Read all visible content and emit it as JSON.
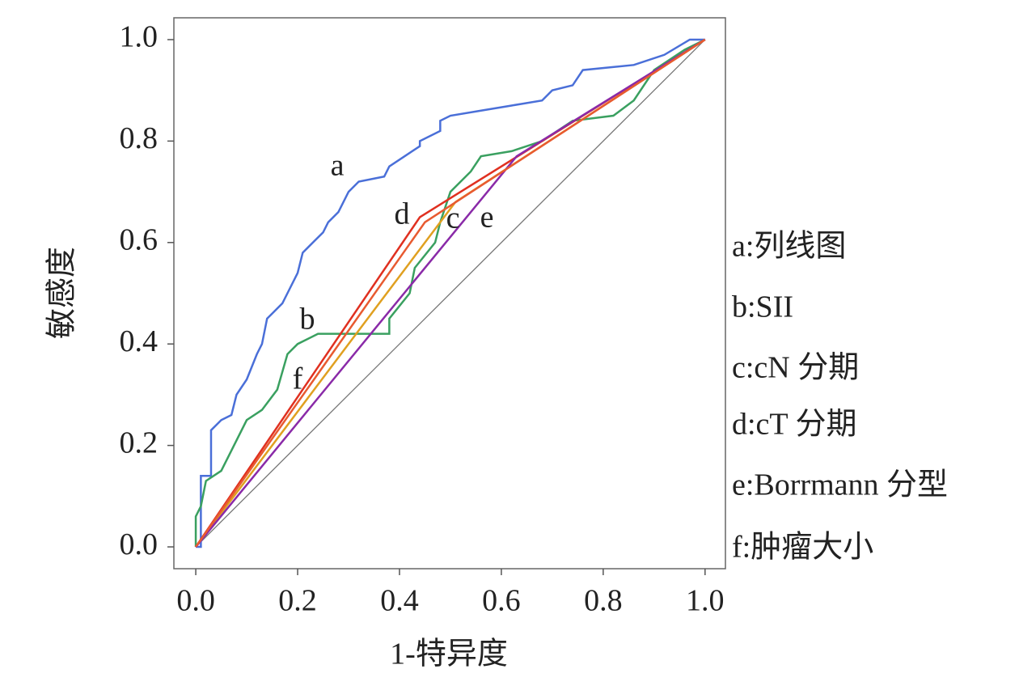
{
  "chart_data": {
    "type": "line",
    "x_label": "1-特异度",
    "y_label": "敏感度",
    "xlim": [
      -0.043,
      1.04
    ],
    "ylim": [
      -0.043,
      1.043
    ],
    "xticks": [
      {
        "value": 0,
        "label": "0.0"
      },
      0.2,
      0.4,
      0.6,
      0.8,
      {
        "value": 1,
        "label": "1.0"
      }
    ],
    "yticks": [
      {
        "value": 0,
        "label": "0.0"
      },
      0.2,
      0.4,
      0.6,
      0.8,
      {
        "value": 1,
        "label": "1.0"
      }
    ],
    "annotations": [
      "a",
      "b",
      "c",
      "d",
      "e",
      "f"
    ],
    "series": [
      {
        "name": "a:列线图",
        "color": "#4a6fd8",
        "x": [
          0,
          0.01,
          0.01,
          0.03,
          0.03,
          0.05,
          0.07,
          0.08,
          0.1,
          0.12,
          0.13,
          0.14,
          0.15,
          0.17,
          0.18,
          0.2,
          0.21,
          0.23,
          0.25,
          0.26,
          0.28,
          0.3,
          0.32,
          0.37,
          0.38,
          0.41,
          0.44,
          0.44,
          0.48,
          0.48,
          0.5,
          0.56,
          0.62,
          0.68,
          0.7,
          0.74,
          0.76,
          0.86,
          0.92,
          0.97,
          1
        ],
        "values": [
          0,
          0,
          0.14,
          0.14,
          0.23,
          0.25,
          0.26,
          0.3,
          0.33,
          0.38,
          0.4,
          0.45,
          0.46,
          0.48,
          0.5,
          0.54,
          0.58,
          0.6,
          0.62,
          0.64,
          0.66,
          0.7,
          0.72,
          0.73,
          0.75,
          0.77,
          0.79,
          0.8,
          0.82,
          0.84,
          0.85,
          0.86,
          0.87,
          0.88,
          0.9,
          0.91,
          0.94,
          0.95,
          0.97,
          1,
          1
        ]
      },
      {
        "name": "b:SII",
        "color": "#3aa060",
        "x": [
          0,
          0,
          0.01,
          0.02,
          0.05,
          0.07,
          0.1,
          0.13,
          0.16,
          0.18,
          0.2,
          0.24,
          0.38,
          0.38,
          0.42,
          0.43,
          0.47,
          0.48,
          0.5,
          0.54,
          0.56,
          0.62,
          0.68,
          0.74,
          0.82,
          0.86,
          0.9,
          0.96,
          1
        ],
        "values": [
          0,
          0.06,
          0.08,
          0.13,
          0.15,
          0.19,
          0.25,
          0.27,
          0.31,
          0.38,
          0.4,
          0.42,
          0.42,
          0.45,
          0.5,
          0.55,
          0.6,
          0.64,
          0.7,
          0.74,
          0.77,
          0.78,
          0.8,
          0.84,
          0.85,
          0.88,
          0.94,
          0.98,
          1
        ]
      },
      {
        "name": "c:cN 分期",
        "color": "#e0a020",
        "x": [
          0,
          0.51,
          1
        ],
        "values": [
          0,
          0.68,
          1
        ]
      },
      {
        "name": "d:cT 分期",
        "color": "#e03020",
        "x": [
          0,
          0.44,
          1
        ],
        "values": [
          0,
          0.65,
          1
        ]
      },
      {
        "name": "e:Borrmann 分型",
        "color": "#8a2aa8",
        "x": [
          0,
          0.63,
          1
        ],
        "values": [
          0,
          0.77,
          1
        ]
      },
      {
        "name": "f:肿瘤大小",
        "color": "#e85a30",
        "x": [
          0,
          0.45,
          1
        ],
        "values": [
          0,
          0.64,
          1
        ]
      }
    ]
  }
}
